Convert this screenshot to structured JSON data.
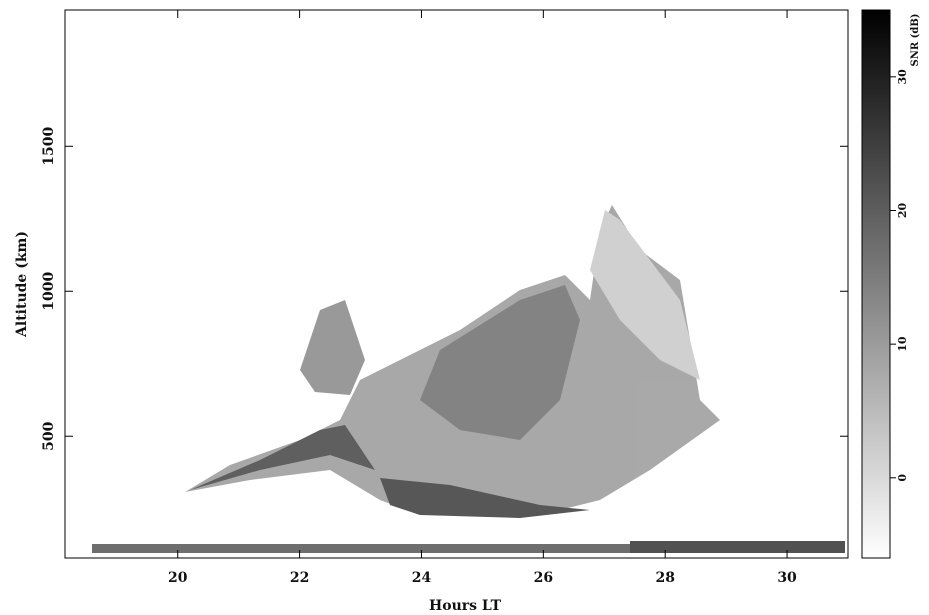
{
  "chart_data": {
    "type": "rti",
    "xlabel": "Hours LT",
    "ylabel": "Altitude (km)",
    "xlim": [
      18.15,
      31.0
    ],
    "xticks": [
      20,
      22,
      24,
      26,
      28,
      30
    ],
    "ylim": [
      80,
      1970
    ],
    "yticks": [
      500,
      1000,
      1500
    ],
    "colorbar": {
      "label": "SNR (dB)",
      "lim": [
        -6,
        35
      ],
      "ticks": [
        0,
        10,
        20,
        30
      ],
      "colors": [
        "#ffffff",
        "#000000"
      ]
    }
  }
}
